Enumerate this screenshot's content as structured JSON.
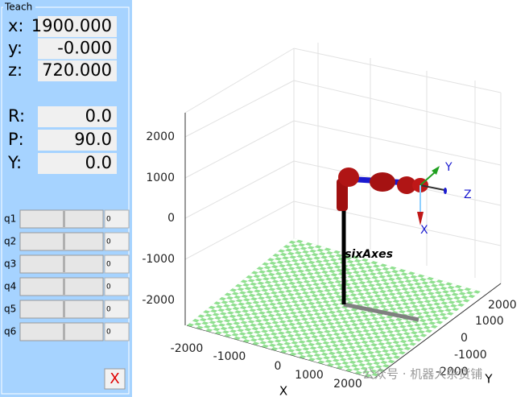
{
  "panel": {
    "title": "Teach",
    "position": [
      {
        "label": "x:",
        "value": "1900.000"
      },
      {
        "label": "y:",
        "value": "-0.000"
      },
      {
        "label": "z:",
        "value": "720.000"
      }
    ],
    "orientation": [
      {
        "label": "R:",
        "value": "0.0"
      },
      {
        "label": "P:",
        "value": "90.0"
      },
      {
        "label": "Y:",
        "value": "0.0"
      }
    ],
    "joints": [
      {
        "label": "q1",
        "value": "0"
      },
      {
        "label": "q2",
        "value": "0"
      },
      {
        "label": "q3",
        "value": "0"
      },
      {
        "label": "q4",
        "value": "0"
      },
      {
        "label": "q5",
        "value": "0"
      },
      {
        "label": "q6",
        "value": "0"
      }
    ],
    "close": "X"
  },
  "plot": {
    "z_ticks": [
      "2000",
      "1000",
      "0",
      "-1000",
      "-2000"
    ],
    "x_ticks": [
      "-2000",
      "-1000",
      "0",
      "1000",
      "2000"
    ],
    "x_label": "X",
    "y_ticks": [
      "-2000",
      "-1000",
      "0",
      "1000",
      "2000"
    ],
    "y_label": "Y",
    "robot_name": "sixAxes",
    "frame_labels": {
      "x": "X",
      "y": "Y",
      "z": "Z"
    }
  },
  "watermark": "公众号 · 机器人杂货铺"
}
